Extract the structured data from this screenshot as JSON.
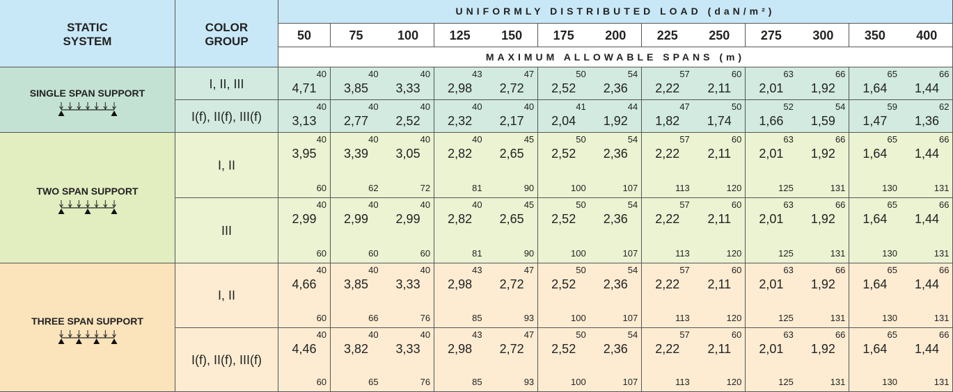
{
  "header": {
    "static_system": [
      "STATIC",
      "SYSTEM"
    ],
    "color_group": [
      "COLOR",
      "GROUP"
    ],
    "load_title": "UNIFORMLY DISTRIBUTED LOAD (daN/m²)",
    "loads": [
      50,
      75,
      100,
      125,
      150,
      175,
      200,
      225,
      250,
      275,
      300,
      350,
      400
    ],
    "spans_title": "MAXIMUM ALLOWABLE SPANS (m)"
  },
  "systems": [
    {
      "name": "SINGLE SPAN SUPPORT",
      "groups": [
        {
          "label": "I, II, III",
          "top": [
            40,
            40,
            40,
            43,
            47,
            50,
            54,
            57,
            60,
            63,
            66,
            65,
            66
          ],
          "spans": [
            "4,71",
            "3,85",
            "3,33",
            "2,98",
            "2,72",
            "2,52",
            "2,36",
            "2,22",
            "2,11",
            "2,01",
            "1,92",
            "1,64",
            "1,44"
          ]
        },
        {
          "label": "I(f), II(f), III(f)",
          "top": [
            40,
            40,
            40,
            40,
            40,
            41,
            44,
            47,
            50,
            52,
            54,
            59,
            62
          ],
          "spans": [
            "3,13",
            "2,77",
            "2,52",
            "2,32",
            "2,17",
            "2,04",
            "1,92",
            "1,82",
            "1,74",
            "1,66",
            "1,59",
            "1,47",
            "1,36"
          ]
        }
      ]
    },
    {
      "name": "TWO SPAN SUPPORT",
      "groups": [
        {
          "label": "I, II",
          "top": [
            40,
            40,
            40,
            40,
            45,
            50,
            54,
            57,
            60,
            63,
            66,
            65,
            66
          ],
          "spans": [
            "3,95",
            "3,39",
            "3,05",
            "2,82",
            "2,65",
            "2,52",
            "2,36",
            "2,22",
            "2,11",
            "2,01",
            "1,92",
            "1,64",
            "1,44"
          ],
          "bottom": [
            60,
            62,
            72,
            81,
            90,
            100,
            107,
            113,
            120,
            125,
            131,
            130,
            131
          ]
        },
        {
          "label": "III",
          "top": [
            40,
            40,
            40,
            40,
            45,
            50,
            54,
            57,
            60,
            63,
            66,
            65,
            66
          ],
          "spans": [
            "2,99",
            "2,99",
            "2,99",
            "2,82",
            "2,65",
            "2,52",
            "2,36",
            "2,22",
            "2,11",
            "2,01",
            "1,92",
            "1,64",
            "1,44"
          ],
          "bottom": [
            60,
            60,
            60,
            81,
            90,
            100,
            107,
            113,
            120,
            125,
            131,
            130,
            131
          ]
        }
      ]
    },
    {
      "name": "THREE SPAN SUPPORT",
      "groups": [
        {
          "label": "I, II",
          "top": [
            40,
            40,
            40,
            43,
            47,
            50,
            54,
            57,
            60,
            63,
            66,
            65,
            66
          ],
          "spans": [
            "4,66",
            "3,85",
            "3,33",
            "2,98",
            "2,72",
            "2,52",
            "2,36",
            "2,22",
            "2,11",
            "2,01",
            "1,92",
            "1,64",
            "1,44"
          ],
          "bottom": [
            60,
            66,
            76,
            85,
            93,
            100,
            107,
            113,
            120,
            125,
            131,
            130,
            131
          ]
        },
        {
          "label": "I(f), II(f), III(f)",
          "top": [
            40,
            40,
            40,
            43,
            47,
            50,
            54,
            57,
            60,
            63,
            66,
            65,
            66
          ],
          "spans": [
            "4,46",
            "3,82",
            "3,33",
            "2,98",
            "2,72",
            "2,52",
            "2,36",
            "2,22",
            "2,11",
            "2,01",
            "1,92",
            "1,64",
            "1,44"
          ],
          "bottom": [
            60,
            65,
            76,
            85,
            93,
            100,
            107,
            113,
            120,
            125,
            131,
            130,
            131
          ]
        }
      ]
    }
  ]
}
